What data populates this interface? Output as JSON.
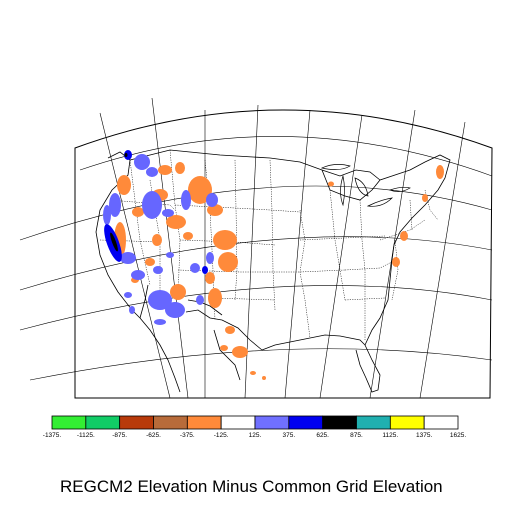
{
  "title": "REGCM2 Elevation Minus Common Grid Elevation",
  "legend": {
    "colors": [
      "#33ee33",
      "#11cc66",
      "#b83a0a",
      "#b86b3a",
      "#ff8a3a",
      "#ffffff",
      "#7070ff",
      "#0000f0",
      "#000000",
      "#20b0b0",
      "#ffff00",
      "#ffffff"
    ],
    "ticks": [
      "-1375.",
      "-1125.",
      "-875.",
      "-625.",
      "-375.",
      "-125.",
      "125.",
      "375.",
      "625.",
      "875.",
      "1125.",
      "1375.",
      "1625."
    ]
  },
  "map": {
    "orange": "#ff8a3a",
    "light_blue": "#6666ff",
    "dark_blue": "#0000f0",
    "black": "#000000"
  }
}
